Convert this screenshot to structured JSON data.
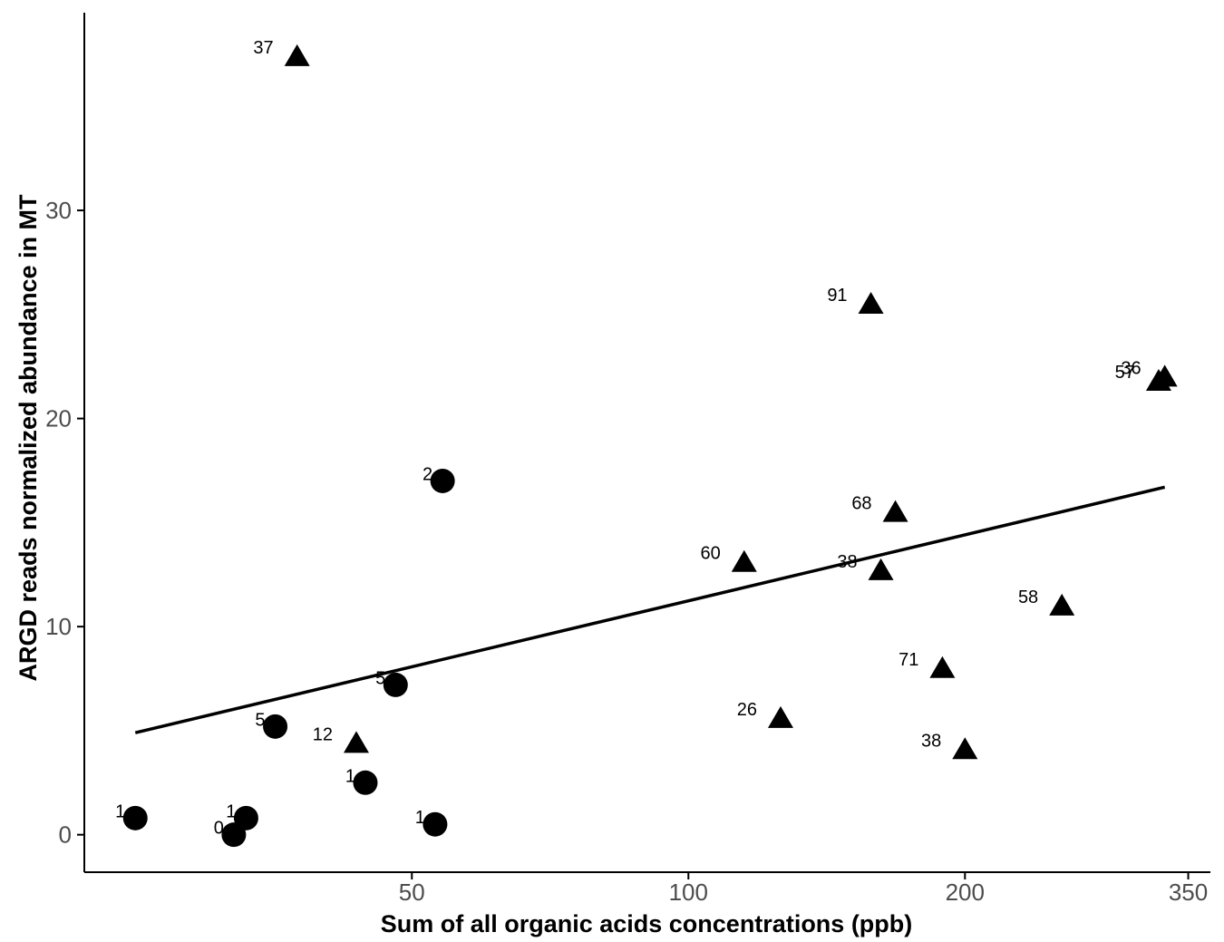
{
  "chart_data": {
    "type": "scatter",
    "xlabel": "Sum of all organic acids concentrations (ppb)",
    "ylabel": "ARGD reads normalized abundance in MT",
    "x_scale": "log",
    "x_ticks": [
      50,
      100,
      200,
      350
    ],
    "x_tick_labels": [
      "50",
      "100",
      "200",
      "350"
    ],
    "y_ticks": [
      0,
      10,
      20,
      30
    ],
    "y_tick_labels": [
      "0",
      "10",
      "20",
      "30"
    ],
    "xlim": [
      22,
      370
    ],
    "ylim": [
      -1.8,
      39.5
    ],
    "grid": false,
    "legend": "none",
    "colors": {
      "points": "#000000",
      "line": "#000000",
      "axis": "#000000"
    },
    "series": [
      {
        "shape": "circle",
        "points": [
          {
            "x": 25,
            "y": 0.8,
            "label": "1"
          },
          {
            "x": 32,
            "y": 0.0,
            "label": "0"
          },
          {
            "x": 33,
            "y": 0.8,
            "label": "1"
          },
          {
            "x": 35.5,
            "y": 5.2,
            "label": "5"
          },
          {
            "x": 44.5,
            "y": 2.5,
            "label": "1"
          },
          {
            "x": 48,
            "y": 7.2,
            "label": "5"
          },
          {
            "x": 53,
            "y": 0.5,
            "label": "1"
          },
          {
            "x": 54,
            "y": 17.0,
            "label": "2"
          }
        ]
      },
      {
        "shape": "triangle",
        "points": [
          {
            "x": 37.5,
            "y": 37.5,
            "label": "37"
          },
          {
            "x": 43.5,
            "y": 4.5,
            "label": "12"
          },
          {
            "x": 115,
            "y": 13.2,
            "label": "60"
          },
          {
            "x": 126,
            "y": 5.7,
            "label": "26"
          },
          {
            "x": 158,
            "y": 25.6,
            "label": "91"
          },
          {
            "x": 162,
            "y": 12.8,
            "label": "38"
          },
          {
            "x": 168,
            "y": 15.6,
            "label": "68"
          },
          {
            "x": 189,
            "y": 8.1,
            "label": "71"
          },
          {
            "x": 200,
            "y": 4.2,
            "label": "38"
          },
          {
            "x": 255,
            "y": 11.1,
            "label": "58"
          },
          {
            "x": 325,
            "y": 21.9,
            "label": "57"
          },
          {
            "x": 330,
            "y": 22.1,
            "label": "36"
          }
        ]
      }
    ],
    "trend_line": {
      "x": [
        25,
        330
      ],
      "y": [
        4.9,
        16.7
      ]
    }
  }
}
